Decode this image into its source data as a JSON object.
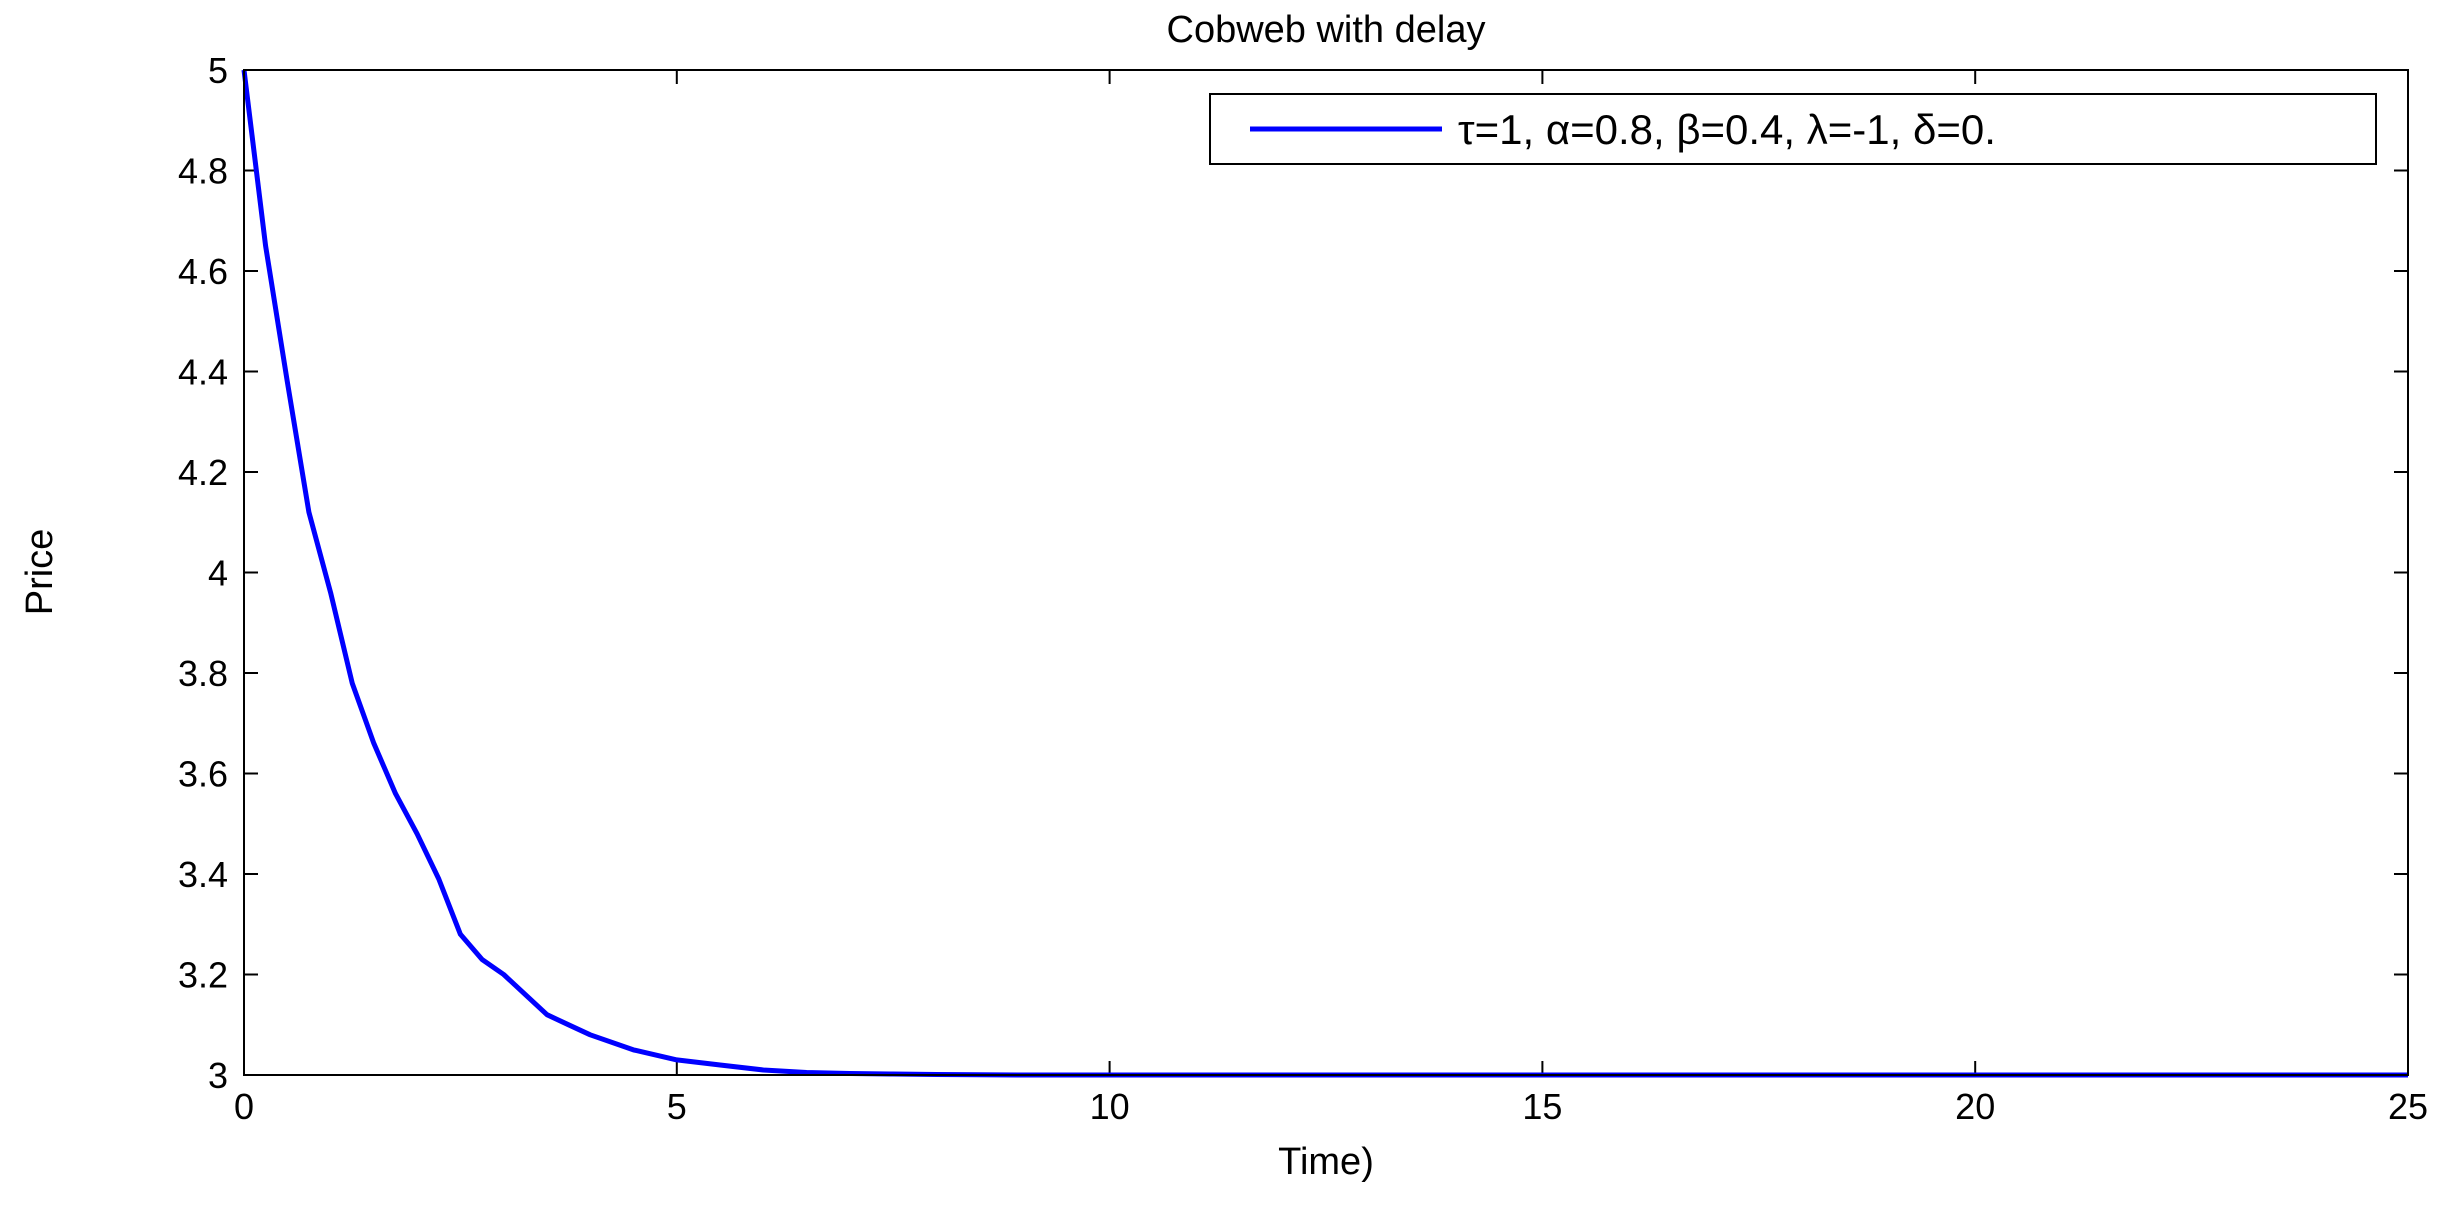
{
  "chart_data": {
    "type": "line",
    "title": "Cobweb with delay",
    "xlabel": "Time)",
    "ylabel": "Price",
    "xlim": [
      0,
      25
    ],
    "ylim": [
      3,
      5
    ],
    "xticks": [
      "0",
      "5",
      "10",
      "15",
      "20",
      "25"
    ],
    "yticks": [
      "3",
      "3.2",
      "3.4",
      "3.6",
      "3.8",
      "4",
      "4.2",
      "4.4",
      "4.6",
      "4.8",
      "5"
    ],
    "grid": false,
    "legend_position": "top-right",
    "series": [
      {
        "name": "τ=1, α=0.8, β=0.4, λ=-1, δ=0.",
        "color": "#0000ff",
        "x": [
          0,
          0.25,
          0.5,
          0.75,
          1.0,
          1.25,
          1.5,
          1.75,
          2.0,
          2.25,
          2.5,
          2.75,
          3.0,
          3.25,
          3.5,
          3.75,
          4.0,
          4.5,
          5.0,
          5.5,
          6.0,
          6.5,
          7.0,
          7.5,
          8.0,
          9.0,
          10.0,
          12.0,
          15.0,
          20.0,
          25.0
        ],
        "y": [
          5.0,
          4.65,
          4.38,
          4.12,
          3.96,
          3.78,
          3.66,
          3.56,
          3.48,
          3.39,
          3.28,
          3.23,
          3.2,
          3.16,
          3.12,
          3.1,
          3.08,
          3.05,
          3.03,
          3.02,
          3.01,
          3.005,
          3.003,
          3.002,
          3.001,
          3.0,
          3.0,
          3.0,
          3.0,
          3.0,
          3.0
        ]
      }
    ]
  }
}
